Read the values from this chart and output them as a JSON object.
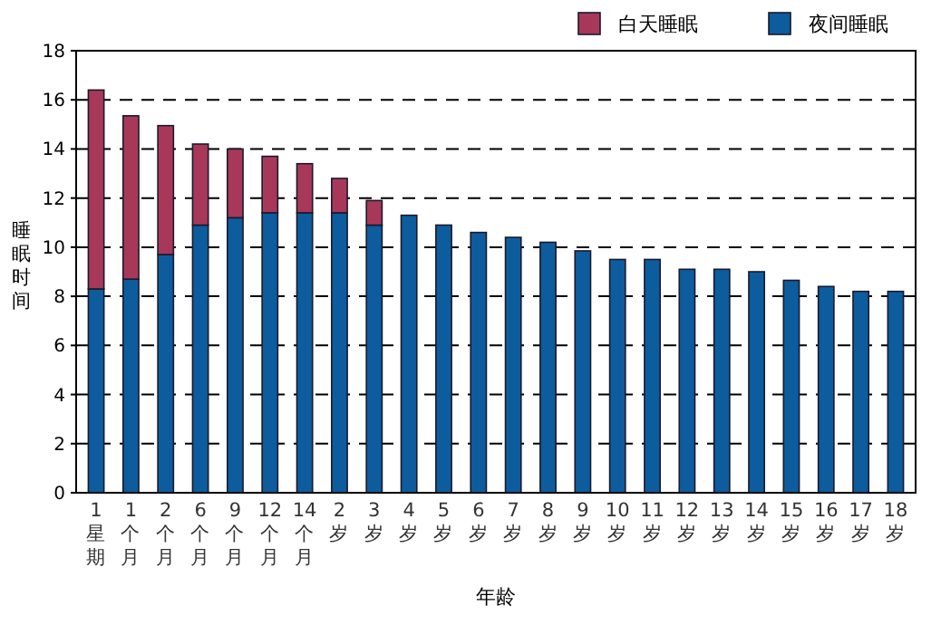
{
  "chart_data": {
    "type": "bar",
    "stacked": true,
    "xlabel": "年龄",
    "ylabel": "睡眠时间",
    "categories": [
      "1星期",
      "1个月",
      "2个月",
      "6个月",
      "9个月",
      "12个月",
      "14个月",
      "2岁",
      "3岁",
      "4岁",
      "5岁",
      "6岁",
      "7岁",
      "8岁",
      "9岁",
      "10岁",
      "11岁",
      "12岁",
      "13岁",
      "14岁",
      "15岁",
      "16岁",
      "17岁",
      "18岁"
    ],
    "series": [
      {
        "name": "夜间睡眠",
        "color": "#0d5c9e",
        "values": [
          8.3,
          8.7,
          9.7,
          10.9,
          11.2,
          11.4,
          11.4,
          11.4,
          10.9,
          11.3,
          10.9,
          10.6,
          10.4,
          10.2,
          9.85,
          9.5,
          9.5,
          9.1,
          9.1,
          9.0,
          8.65,
          8.4,
          8.2,
          8.2
        ]
      },
      {
        "name": "白天睡眠",
        "color": "#a8385a",
        "values": [
          8.1,
          6.65,
          5.25,
          3.3,
          2.8,
          2.3,
          2.0,
          1.4,
          1.0,
          null,
          null,
          null,
          null,
          null,
          null,
          null,
          null,
          null,
          null,
          null,
          null,
          null,
          null,
          null
        ]
      }
    ],
    "ylim": [
      0,
      18
    ],
    "yticks": [
      0,
      2,
      4,
      6,
      8,
      10,
      12,
      14,
      16,
      18
    ],
    "grid": "y",
    "legend": "top right"
  }
}
